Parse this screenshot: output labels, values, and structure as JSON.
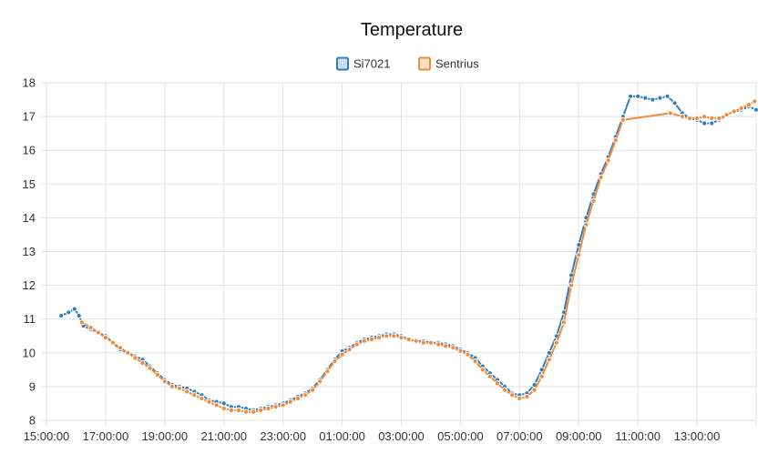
{
  "chart_data": {
    "type": "line",
    "title": "Temperature",
    "xlabel": "",
    "ylabel": "",
    "x_unit": "hours since 15:00",
    "xlim": [
      0,
      24
    ],
    "ylim": [
      8,
      18
    ],
    "x_ticks": [
      {
        "x": 0,
        "label": "15:00:00"
      },
      {
        "x": 2,
        "label": "17:00:00"
      },
      {
        "x": 4,
        "label": "19:00:00"
      },
      {
        "x": 6,
        "label": "21:00:00"
      },
      {
        "x": 8,
        "label": "23:00:00"
      },
      {
        "x": 10,
        "label": "01:00:00"
      },
      {
        "x": 12,
        "label": "03:00:00"
      },
      {
        "x": 14,
        "label": "05:00:00"
      },
      {
        "x": 16,
        "label": "07:00:00"
      },
      {
        "x": 18,
        "label": "09:00:00"
      },
      {
        "x": 20,
        "label": "11:00:00"
      },
      {
        "x": 22,
        "label": "13:00:00"
      }
    ],
    "y_ticks": [
      8,
      9,
      10,
      11,
      12,
      13,
      14,
      15,
      16,
      17,
      18
    ],
    "grid": true,
    "legend_position": "top",
    "series": [
      {
        "name": "Si7021",
        "color": "#2f7fc1",
        "marker": "dot",
        "points": [
          [
            0.5,
            11.1
          ],
          [
            0.75,
            11.2
          ],
          [
            0.95,
            11.3
          ],
          [
            1.1,
            11.1
          ],
          [
            1.25,
            10.8
          ],
          [
            1.5,
            10.7
          ],
          [
            1.75,
            10.6
          ],
          [
            2.0,
            10.5
          ],
          [
            2.25,
            10.3
          ],
          [
            2.5,
            10.1
          ],
          [
            2.75,
            10.0
          ],
          [
            3.0,
            9.9
          ],
          [
            3.25,
            9.8
          ],
          [
            3.5,
            9.6
          ],
          [
            3.75,
            9.4
          ],
          [
            4.0,
            9.2
          ],
          [
            4.25,
            9.05
          ],
          [
            4.5,
            9.0
          ],
          [
            4.75,
            8.95
          ],
          [
            5.0,
            8.85
          ],
          [
            5.25,
            8.75
          ],
          [
            5.5,
            8.6
          ],
          [
            5.75,
            8.55
          ],
          [
            6.0,
            8.5
          ],
          [
            6.25,
            8.4
          ],
          [
            6.5,
            8.4
          ],
          [
            6.75,
            8.35
          ],
          [
            7.0,
            8.3
          ],
          [
            7.25,
            8.35
          ],
          [
            7.5,
            8.4
          ],
          [
            7.75,
            8.45
          ],
          [
            8.0,
            8.5
          ],
          [
            8.25,
            8.6
          ],
          [
            8.5,
            8.7
          ],
          [
            8.75,
            8.8
          ],
          [
            9.0,
            8.95
          ],
          [
            9.25,
            9.2
          ],
          [
            9.5,
            9.5
          ],
          [
            9.75,
            9.8
          ],
          [
            10.0,
            10.05
          ],
          [
            10.25,
            10.15
          ],
          [
            10.5,
            10.3
          ],
          [
            10.75,
            10.4
          ],
          [
            11.0,
            10.45
          ],
          [
            11.25,
            10.5
          ],
          [
            11.5,
            10.55
          ],
          [
            11.75,
            10.55
          ],
          [
            12.0,
            10.5
          ],
          [
            12.25,
            10.4
          ],
          [
            12.5,
            10.35
          ],
          [
            12.75,
            10.35
          ],
          [
            13.0,
            10.3
          ],
          [
            13.25,
            10.3
          ],
          [
            13.5,
            10.25
          ],
          [
            13.75,
            10.2
          ],
          [
            14.0,
            10.1
          ],
          [
            14.25,
            10.0
          ],
          [
            14.5,
            9.85
          ],
          [
            14.75,
            9.6
          ],
          [
            15.0,
            9.4
          ],
          [
            15.25,
            9.2
          ],
          [
            15.5,
            9.0
          ],
          [
            15.75,
            8.8
          ],
          [
            16.0,
            8.75
          ],
          [
            16.25,
            8.8
          ],
          [
            16.5,
            9.05
          ],
          [
            16.75,
            9.5
          ],
          [
            17.0,
            10.0
          ],
          [
            17.25,
            10.5
          ],
          [
            17.5,
            11.2
          ],
          [
            17.75,
            12.3
          ],
          [
            18.0,
            13.2
          ],
          [
            18.25,
            14.0
          ],
          [
            18.5,
            14.7
          ],
          [
            18.75,
            15.3
          ],
          [
            19.0,
            15.8
          ],
          [
            19.25,
            16.4
          ],
          [
            19.5,
            17.0
          ],
          [
            19.75,
            17.6
          ],
          [
            20.0,
            17.6
          ],
          [
            20.25,
            17.55
          ],
          [
            20.5,
            17.5
          ],
          [
            20.75,
            17.55
          ],
          [
            21.0,
            17.6
          ],
          [
            21.25,
            17.4
          ],
          [
            21.5,
            17.1
          ],
          [
            21.75,
            16.95
          ],
          [
            22.0,
            16.9
          ],
          [
            22.25,
            16.8
          ],
          [
            22.5,
            16.8
          ],
          [
            22.75,
            16.9
          ],
          [
            23.0,
            17.05
          ],
          [
            23.25,
            17.15
          ],
          [
            23.5,
            17.2
          ],
          [
            23.75,
            17.3
          ],
          [
            24.0,
            17.2
          ]
        ]
      },
      {
        "name": "Sentrius",
        "color": "#f28a3a",
        "marker": "dot",
        "points": [
          [
            1.2,
            10.9
          ],
          [
            1.5,
            10.75
          ],
          [
            1.75,
            10.6
          ],
          [
            2.0,
            10.45
          ],
          [
            2.25,
            10.3
          ],
          [
            2.5,
            10.15
          ],
          [
            2.75,
            10.0
          ],
          [
            3.0,
            9.85
          ],
          [
            3.25,
            9.7
          ],
          [
            3.5,
            9.55
          ],
          [
            3.75,
            9.35
          ],
          [
            4.0,
            9.15
          ],
          [
            4.25,
            9.0
          ],
          [
            4.5,
            8.95
          ],
          [
            4.75,
            8.85
          ],
          [
            5.0,
            8.75
          ],
          [
            5.25,
            8.65
          ],
          [
            5.5,
            8.55
          ],
          [
            5.75,
            8.45
          ],
          [
            6.0,
            8.35
          ],
          [
            6.25,
            8.3
          ],
          [
            6.5,
            8.3
          ],
          [
            6.75,
            8.25
          ],
          [
            7.0,
            8.25
          ],
          [
            7.25,
            8.3
          ],
          [
            7.5,
            8.35
          ],
          [
            7.75,
            8.4
          ],
          [
            8.0,
            8.45
          ],
          [
            8.25,
            8.55
          ],
          [
            8.5,
            8.65
          ],
          [
            8.75,
            8.75
          ],
          [
            9.0,
            8.9
          ],
          [
            9.25,
            9.15
          ],
          [
            9.5,
            9.45
          ],
          [
            9.75,
            9.75
          ],
          [
            10.0,
            9.95
          ],
          [
            10.25,
            10.1
          ],
          [
            10.5,
            10.25
          ],
          [
            10.75,
            10.35
          ],
          [
            11.0,
            10.4
          ],
          [
            11.25,
            10.45
          ],
          [
            11.5,
            10.5
          ],
          [
            11.75,
            10.5
          ],
          [
            12.0,
            10.45
          ],
          [
            12.25,
            10.4
          ],
          [
            12.5,
            10.35
          ],
          [
            12.75,
            10.3
          ],
          [
            13.0,
            10.3
          ],
          [
            13.25,
            10.25
          ],
          [
            13.5,
            10.2
          ],
          [
            13.75,
            10.15
          ],
          [
            14.0,
            10.05
          ],
          [
            14.25,
            9.95
          ],
          [
            14.5,
            9.75
          ],
          [
            14.75,
            9.5
          ],
          [
            15.0,
            9.3
          ],
          [
            15.25,
            9.1
          ],
          [
            15.5,
            8.9
          ],
          [
            15.75,
            8.75
          ],
          [
            16.0,
            8.65
          ],
          [
            16.25,
            8.7
          ],
          [
            16.5,
            8.9
          ],
          [
            16.75,
            9.3
          ],
          [
            17.0,
            9.8
          ],
          [
            17.25,
            10.3
          ],
          [
            17.5,
            10.9
          ],
          [
            17.75,
            12.0
          ],
          [
            18.0,
            12.9
          ],
          [
            18.25,
            13.8
          ],
          [
            18.5,
            14.5
          ],
          [
            18.75,
            15.2
          ],
          [
            19.0,
            15.7
          ],
          [
            19.25,
            16.3
          ],
          [
            19.5,
            16.9
          ],
          [
            21.1,
            17.1
          ],
          [
            21.5,
            17.0
          ],
          [
            21.75,
            16.95
          ],
          [
            22.0,
            16.95
          ],
          [
            22.25,
            17.0
          ],
          [
            22.5,
            16.95
          ],
          [
            22.75,
            16.95
          ],
          [
            23.0,
            17.05
          ],
          [
            23.25,
            17.15
          ],
          [
            23.5,
            17.25
          ],
          [
            23.75,
            17.35
          ],
          [
            23.95,
            17.45
          ]
        ]
      }
    ]
  }
}
